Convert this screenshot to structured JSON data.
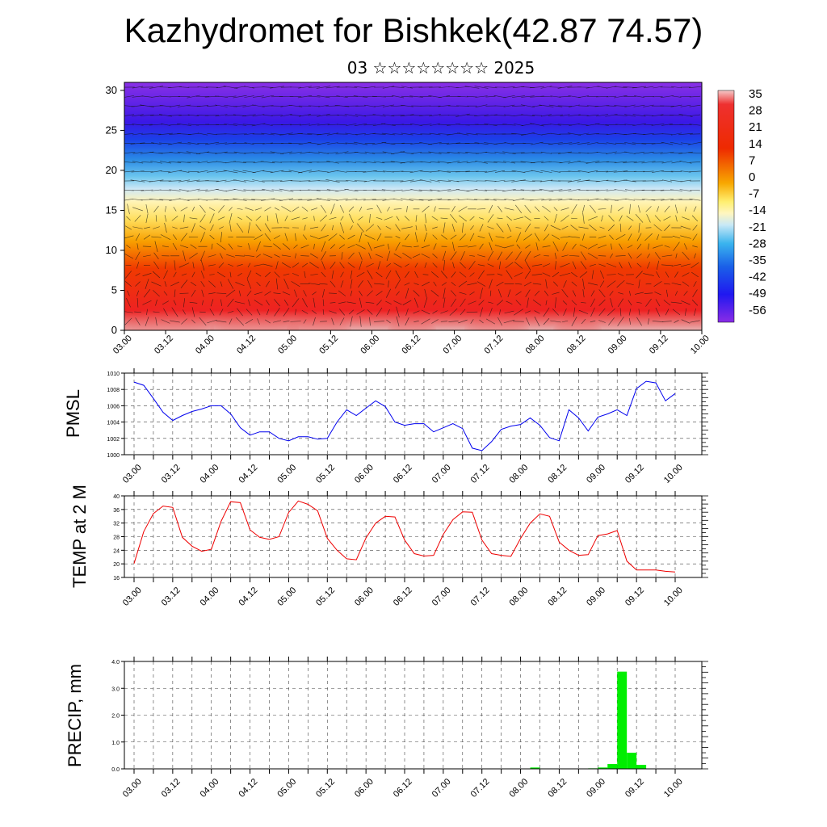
{
  "title": "Kazhydromet for Bishkek(42.87 74.57)",
  "subtitle": "03 ☆☆☆☆☆☆☆☆ 2025",
  "time_ticks": [
    "03.00",
    "03.12",
    "04.00",
    "04.12",
    "05.00",
    "05.12",
    "06.00",
    "06.12",
    "07.00",
    "07.12",
    "08.00",
    "08.12",
    "09.00",
    "09.12",
    "10.00"
  ],
  "colorbar_labels": [
    "35",
    "28",
    "21",
    "14",
    "7",
    "0",
    "-7",
    "-14",
    "-21",
    "-28",
    "-35",
    "-42",
    "-49",
    "-56"
  ],
  "chart_data": [
    {
      "type": "heatmap",
      "title": "",
      "ylabel": "",
      "ylim": [
        0,
        31
      ],
      "y_ticks": [
        "0",
        "5",
        "10",
        "15",
        "20",
        "25",
        "30"
      ],
      "x": [
        "03.00",
        "03.12",
        "04.00",
        "04.12",
        "05.00",
        "05.12",
        "06.00",
        "06.12",
        "07.00",
        "07.12",
        "08.00",
        "08.12",
        "09.00",
        "09.12",
        "10.00"
      ],
      "color_scale": [
        35,
        -56
      ],
      "overlay": "wind barbs",
      "description_levels": [
        0,
        5,
        10,
        15,
        20,
        25,
        30
      ]
    },
    {
      "type": "line",
      "ylabel": "PMSL",
      "ylim": [
        1000,
        1010
      ],
      "y_ticks": [
        "1000",
        "1002",
        "1004",
        "1006",
        "1008",
        "1010"
      ],
      "color": "#0000ee",
      "x_hours": [
        0,
        3,
        6,
        9,
        12,
        15,
        18,
        21,
        24,
        27,
        30,
        33,
        36,
        39,
        42,
        45,
        48,
        51,
        54,
        57,
        60,
        63,
        66,
        69,
        72,
        75,
        78,
        81,
        84,
        87,
        90,
        93,
        96,
        99,
        102,
        105,
        108,
        111,
        114,
        117,
        120,
        123,
        126,
        129,
        132,
        135,
        138,
        141,
        144,
        147,
        150,
        153,
        156,
        159,
        162,
        165,
        168
      ],
      "values": [
        1008.9,
        1008.5,
        1006.9,
        1005.2,
        1004.2,
        1004.8,
        1005.3,
        1005.6,
        1006.0,
        1006.0,
        1005.0,
        1003.3,
        1002.4,
        1002.8,
        1002.8,
        1002.0,
        1001.7,
        1002.2,
        1002.2,
        1001.9,
        1002.0,
        1004.0,
        1005.5,
        1004.8,
        1005.7,
        1006.6,
        1005.9,
        1004.0,
        1003.6,
        1003.8,
        1003.8,
        1002.8,
        1003.3,
        1003.8,
        1003.2,
        1000.8,
        1000.5,
        1001.6,
        1003.1,
        1003.5,
        1003.7,
        1004.5,
        1003.6,
        1002.1,
        1001.7,
        1005.5,
        1004.5,
        1002.9,
        1004.6,
        1005.0,
        1005.5,
        1004.8,
        1008.1,
        1009.0,
        1008.8,
        1006.6,
        1007.5
      ]
    },
    {
      "type": "line",
      "ylabel": "TEMP at 2 M",
      "ylim": [
        16,
        40
      ],
      "y_ticks": [
        "16",
        "20",
        "24",
        "28",
        "32",
        "36",
        "40"
      ],
      "color": "#ee0000",
      "x_hours": [
        0,
        3,
        6,
        9,
        12,
        15,
        18,
        21,
        24,
        27,
        30,
        33,
        36,
        39,
        42,
        45,
        48,
        51,
        54,
        57,
        60,
        63,
        66,
        69,
        72,
        75,
        78,
        81,
        84,
        87,
        90,
        93,
        96,
        99,
        102,
        105,
        108,
        111,
        114,
        117,
        120,
        123,
        126,
        129,
        132,
        135,
        138,
        141,
        144,
        147,
        150,
        153,
        156,
        159,
        162,
        165,
        168
      ],
      "values": [
        20.1,
        29.5,
        34.8,
        37.0,
        36.6,
        27.8,
        25.2,
        23.7,
        24.3,
        32.5,
        38.3,
        38.0,
        30.0,
        27.8,
        27.2,
        28.0,
        35.1,
        38.5,
        37.5,
        35.6,
        27.5,
        24.0,
        21.5,
        21.2,
        27.6,
        32.0,
        34.0,
        33.8,
        27.0,
        23.0,
        22.3,
        22.5,
        28.7,
        33.0,
        35.3,
        35.2,
        27.0,
        23.0,
        22.5,
        22.2,
        27.5,
        32.0,
        34.7,
        34.0,
        26.4,
        24.0,
        22.5,
        22.7,
        28.3,
        28.8,
        29.8,
        20.8,
        18.2,
        18.2,
        18.2,
        17.8,
        17.6
      ]
    },
    {
      "type": "bar",
      "ylabel": "PRECIP, mm",
      "ylim": [
        0,
        4.0
      ],
      "y_ticks": [
        "0.0",
        "1.0",
        "2.0",
        "3.0",
        "4.0"
      ],
      "color": "#00ee00",
      "x_hours": [
        123,
        141,
        144,
        147,
        150,
        153,
        156,
        159
      ],
      "values": [
        0.05,
        0.02,
        0.05,
        0.18,
        3.62,
        0.6,
        0.15,
        0.0
      ]
    }
  ]
}
